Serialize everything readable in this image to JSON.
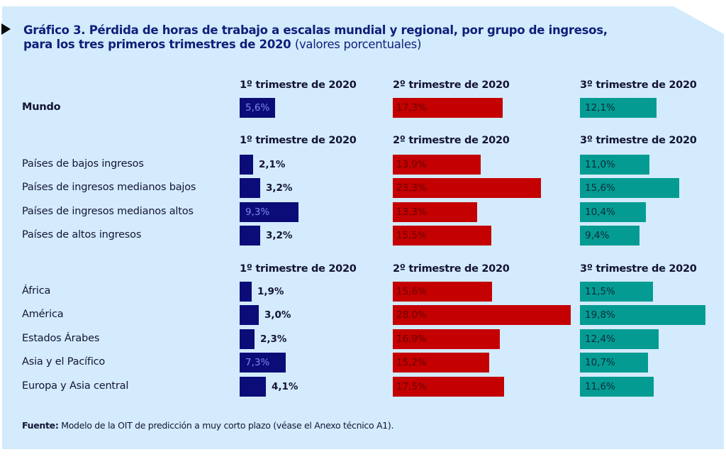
{
  "colors": {
    "panel_bg": "#d3ebfc",
    "title": "#0f1f7a",
    "q1": "#0c0c78",
    "q2": "#c40000",
    "q3": "#049b92"
  },
  "chart_data": {
    "type": "bar",
    "orientation": "horizontal",
    "title": "Gráfico 3.  Pérdida de horas de trabajo a escalas mundial y regional, por grupo de ingresos,",
    "title_line2": "para los tres primeros trimestres de 2020",
    "subtitle": "(valores porcentuales)",
    "column_headers": [
      "1º trimestre de 2020",
      "2º trimestre de 2020",
      "3º trimestre de 2020"
    ],
    "unit": "%",
    "groups": [
      {
        "name": "world",
        "rows": [
          {
            "label": "Mundo",
            "bold": true,
            "values": [
              5.6,
              17.3,
              12.1
            ],
            "labels": [
              "5,6%",
              "17,3%",
              "12,1%"
            ]
          }
        ]
      },
      {
        "name": "income",
        "rows": [
          {
            "label": "Países de bajos ingresos",
            "values": [
              2.1,
              13.9,
              11.0
            ],
            "labels": [
              "2,1%",
              "13,9%",
              "11,0%"
            ]
          },
          {
            "label": "Países de ingresos medianos bajos",
            "values": [
              3.2,
              23.3,
              15.6
            ],
            "labels": [
              "3,2%",
              "23,3%",
              "15,6%"
            ]
          },
          {
            "label": "Países de ingresos medianos altos",
            "values": [
              9.3,
              13.3,
              10.4
            ],
            "labels": [
              "9,3%",
              "13,3%",
              "10,4%"
            ]
          },
          {
            "label": "Países de altos ingresos",
            "values": [
              3.2,
              15.5,
              9.4
            ],
            "labels": [
              "3,2%",
              "15,5%",
              "9,4%"
            ]
          }
        ]
      },
      {
        "name": "regions",
        "rows": [
          {
            "label": "África",
            "values": [
              1.9,
              15.6,
              11.5
            ],
            "labels": [
              "1,9%",
              "15,6%",
              "11,5%"
            ]
          },
          {
            "label": "América",
            "values": [
              3.0,
              28.0,
              19.8
            ],
            "labels": [
              "3,0%",
              "28,0%",
              "19,8%"
            ]
          },
          {
            "label": "Estados Árabes",
            "values": [
              2.3,
              16.9,
              12.4
            ],
            "labels": [
              "2,3%",
              "16,9%",
              "12,4%"
            ]
          },
          {
            "label": "Asia y el Pacífico",
            "values": [
              7.3,
              15.2,
              10.7
            ],
            "labels": [
              "7,3%",
              "15,2%",
              "10,7%"
            ]
          },
          {
            "label": "Europa y Asia central",
            "values": [
              4.1,
              17.5,
              11.6
            ],
            "labels": [
              "4,1%",
              "17,5%",
              "11,6%"
            ]
          }
        ]
      }
    ],
    "xlim": [
      0,
      28.0
    ],
    "grid": false,
    "legend": "none"
  },
  "footer": {
    "source_label": "Fuente:",
    "source_text": " Modelo de la OIT de predicción a muy corto plazo (véase el Anexo técnico A1)."
  }
}
